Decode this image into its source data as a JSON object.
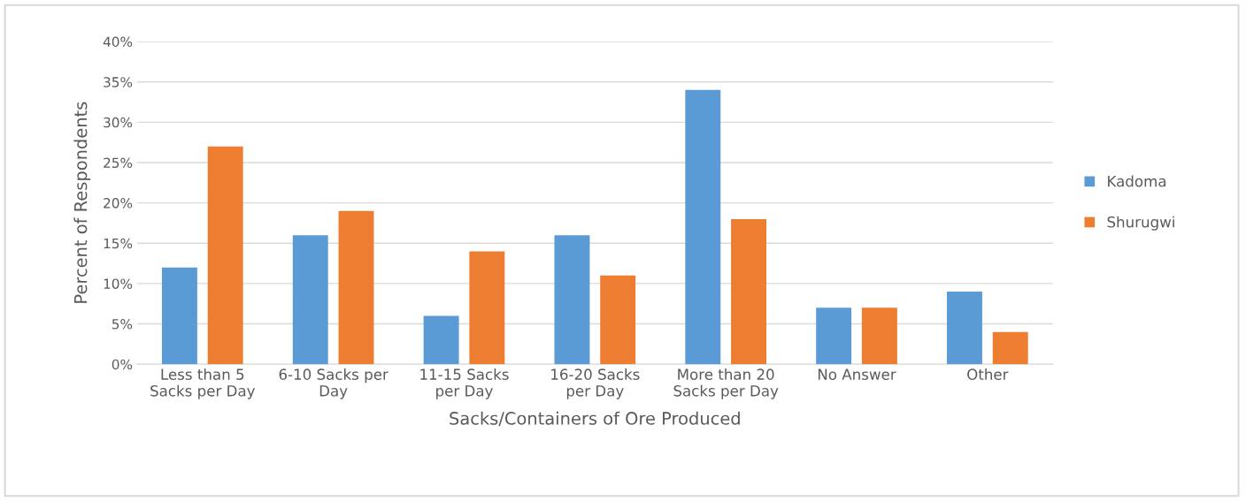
{
  "chart_data": {
    "type": "bar",
    "categories": [
      "Less than 5\nSacks per Day",
      "6-10 Sacks per\nDay",
      "11-15 Sacks\nper Day",
      "16-20 Sacks\nper Day",
      "More than 20\nSacks per Day",
      "No Answer",
      "Other"
    ],
    "series": [
      {
        "name": "Kadoma",
        "color": "#5b9bd5",
        "values": [
          12,
          16,
          6,
          16,
          34,
          7,
          9
        ]
      },
      {
        "name": "Shurugwi",
        "color": "#ed7d31",
        "values": [
          27,
          19,
          14,
          11,
          18,
          7,
          4
        ]
      }
    ],
    "xlabel": "Sacks/Containers of Ore Produced",
    "ylabel": "Percent of Respondents",
    "ylim": [
      0,
      40
    ],
    "yticks": [
      {
        "value": 0,
        "label": "0%"
      },
      {
        "value": 5,
        "label": "5%"
      },
      {
        "value": 10,
        "label": "10%"
      },
      {
        "value": 15,
        "label": "15%"
      },
      {
        "value": 20,
        "label": "20%"
      },
      {
        "value": 25,
        "label": "25%"
      },
      {
        "value": 30,
        "label": "30%"
      },
      {
        "value": 35,
        "label": "35%"
      },
      {
        "value": 40,
        "label": "40%"
      }
    ],
    "grid": "y",
    "legend": "right"
  }
}
